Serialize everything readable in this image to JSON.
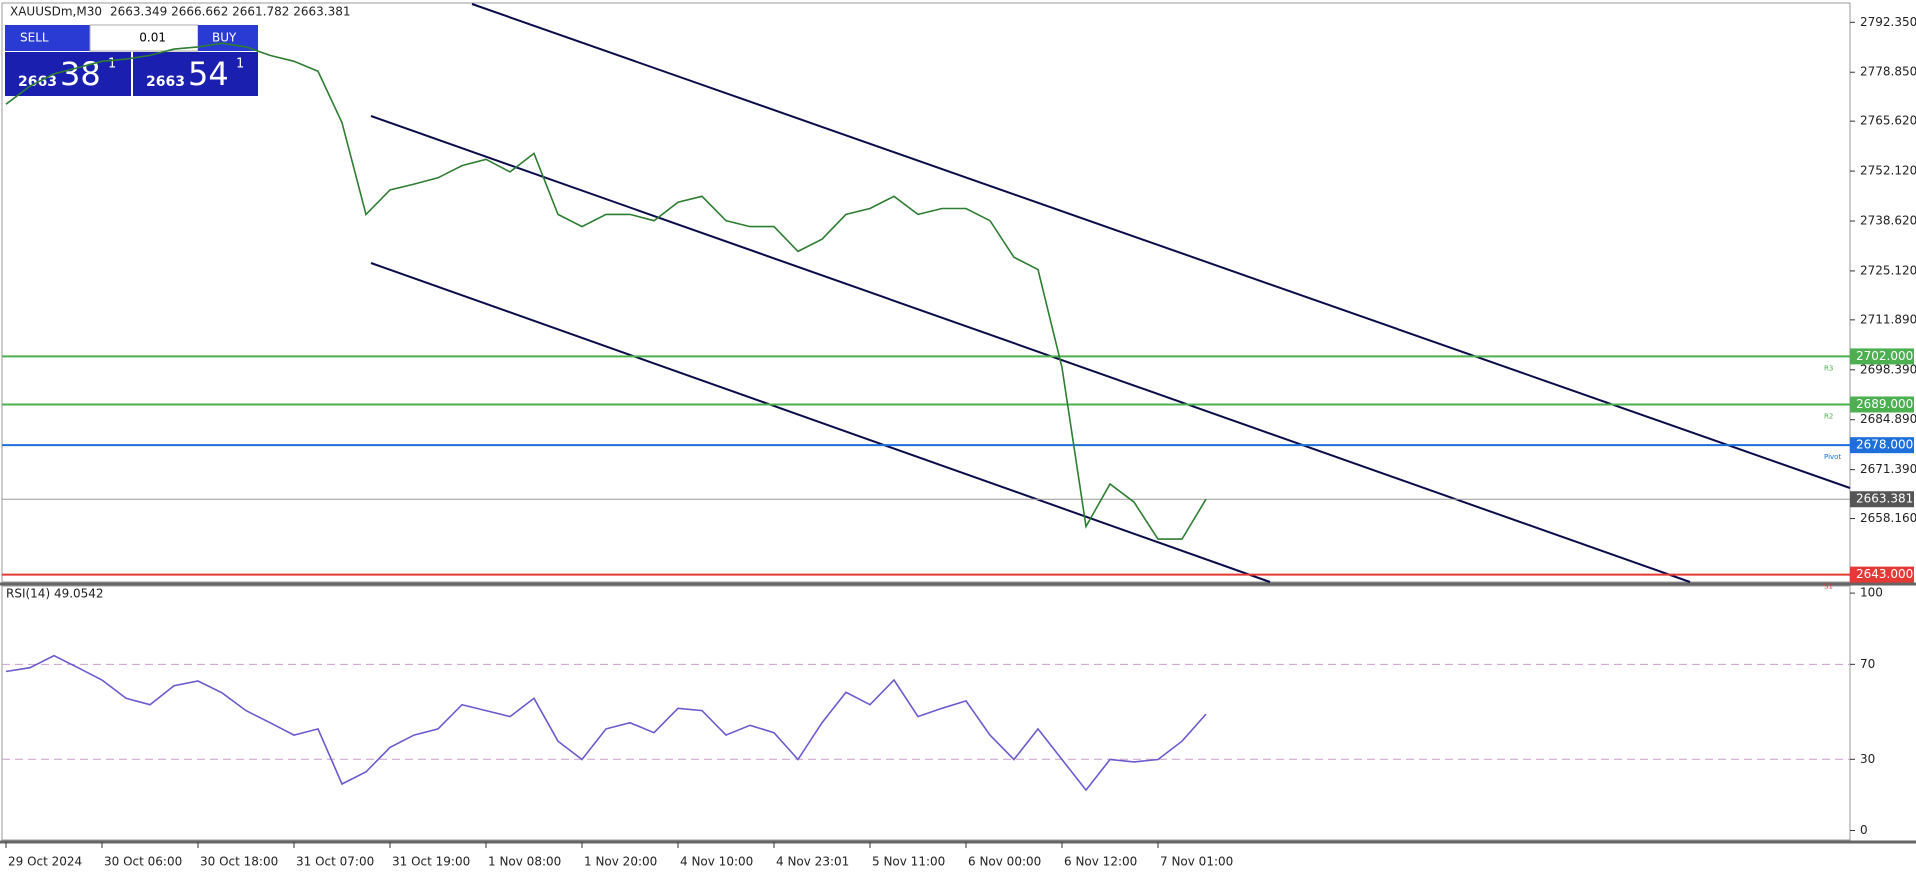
{
  "header": {
    "symbol": "XAUUSDm,M30",
    "ohlc": "2663.349 2666.662 2661.782 2663.381"
  },
  "trade_panel": {
    "sell": "SELL",
    "lot": "0.01",
    "buy": "BUY",
    "sell_big": "2663",
    "sell_pips": "38",
    "sell_frac": "1",
    "buy_big": "2663",
    "buy_pips": "54",
    "buy_frac": "1"
  },
  "chart_data": [
    {
      "type": "line",
      "color": "#2e7d32",
      "categories": [
        "29 Oct 2024",
        null,
        null,
        null,
        "30 Oct 06:00",
        null,
        null,
        null,
        "30 Oct 18:00",
        null,
        null,
        null,
        "31 Oct 07:00",
        null,
        null,
        null,
        "31 Oct 19:00",
        null,
        null,
        null,
        "1 Nov 08:00",
        null,
        null,
        null,
        "1 Nov 20:00",
        null,
        null,
        null,
        "4 Nov 10:00",
        null,
        null,
        null,
        "4 Nov 23:01",
        null,
        null,
        null,
        "5 Nov 11:00",
        null,
        null,
        null,
        "6 Nov 00:00",
        null,
        null,
        null,
        "6 Nov 12:00",
        null,
        null,
        null,
        "7 Nov 01:00",
        null,
        null
      ],
      "values": [
        2770.2,
        2775.1,
        2778.4,
        2780.1,
        2781.8,
        2782.4,
        2783.4,
        2785.1,
        2785.7,
        2786.7,
        2785.7,
        2783.4,
        2781.8,
        2779.1,
        2765.2,
        2740.4,
        2747.0,
        2748.6,
        2750.3,
        2753.6,
        2755.3,
        2751.9,
        2756.9,
        2740.4,
        2737.1,
        2740.4,
        2740.4,
        2738.7,
        2743.7,
        2745.3,
        2738.7,
        2737.1,
        2737.1,
        2730.4,
        2733.7,
        2740.4,
        2742.0,
        2745.3,
        2740.4,
        2742.0,
        2742.0,
        2738.7,
        2728.8,
        2725.5,
        2699.0,
        2656.0,
        2667.5,
        2662.6,
        2652.6,
        2652.6,
        2663.4
      ],
      "ylim": [
        2641,
        2797.3
      ],
      "yticks": [
        {
          "value": 2792.35,
          "label": "2792.350"
        },
        {
          "value": 2778.85,
          "label": "2778.850"
        },
        {
          "value": 2765.62,
          "label": "2765.620"
        },
        {
          "value": 2752.12,
          "label": "2752.120"
        },
        {
          "value": 2738.62,
          "label": "2738.620"
        },
        {
          "value": 2725.12,
          "label": "2725.120"
        },
        {
          "value": 2711.89,
          "label": "2711.890"
        },
        {
          "value": 2698.39,
          "label": "2698.390"
        },
        {
          "value": 2684.89,
          "label": "2684.890"
        },
        {
          "value": 2671.39,
          "label": "2671.390"
        },
        {
          "value": 2658.16,
          "label": "2658.160"
        }
      ],
      "levels": [
        {
          "value": 2702,
          "label": "2702.000",
          "name": "R3",
          "color": "#4caf50"
        },
        {
          "value": 2689,
          "label": "2689.000",
          "name": "R2",
          "color": "#4caf50"
        },
        {
          "value": 2678,
          "label": "2678.000",
          "name": "Pivot",
          "color": "#1e6fd9"
        },
        {
          "value": 2643,
          "label": "2643.000",
          "name": "S1",
          "color": "#e53935"
        }
      ],
      "current": {
        "value": 2663.381,
        "label": "2663.381",
        "color": "#555555"
      }
    },
    {
      "type": "line",
      "title": "RSI(14) 49.0542",
      "color": "#6a5acd",
      "values": [
        67,
        68.6,
        73.7,
        68.6,
        63.4,
        55.7,
        53,
        61,
        63,
        58,
        50.5,
        45.4,
        40.2,
        42.8,
        19.6,
        24.7,
        35,
        40.2,
        42.8,
        53,
        50.5,
        48,
        55.7,
        37.6,
        29.9,
        42.8,
        45.4,
        41.2,
        51.5,
        50.5,
        40.2,
        44.3,
        41.2,
        29.9,
        45.4,
        58.2,
        53,
        63.4,
        48,
        51.5,
        54.6,
        40.2,
        29.9,
        42.8,
        29.9,
        17,
        29.9,
        28.9,
        29.9,
        37.6,
        49.05
      ],
      "ylim": [
        -4,
        103
      ],
      "yticks": [
        0,
        30,
        70,
        100
      ],
      "levels": [
        30,
        70
      ]
    }
  ]
}
